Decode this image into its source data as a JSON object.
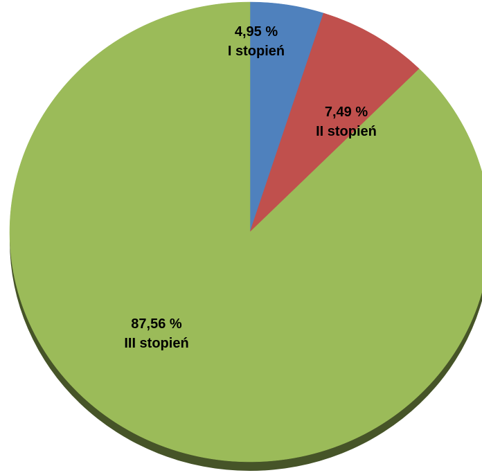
{
  "chart_data": {
    "type": "pie",
    "title": "",
    "start_angle_deg": 0,
    "direction": "clockwise",
    "style": "3d-tilted",
    "slices": [
      {
        "name": "I stopień",
        "value": 4.95,
        "value_label": "4,95 %",
        "category_label": "I stopień",
        "color": "#4F81BD"
      },
      {
        "name": "II stopień",
        "value": 7.49,
        "value_label": "7,49 %",
        "category_label": "II stopień",
        "color": "#C0504D"
      },
      {
        "name": "III stopień",
        "value": 87.56,
        "value_label": "87,56 %",
        "category_label": "III stopień",
        "color": "#9BBB59"
      }
    ]
  }
}
